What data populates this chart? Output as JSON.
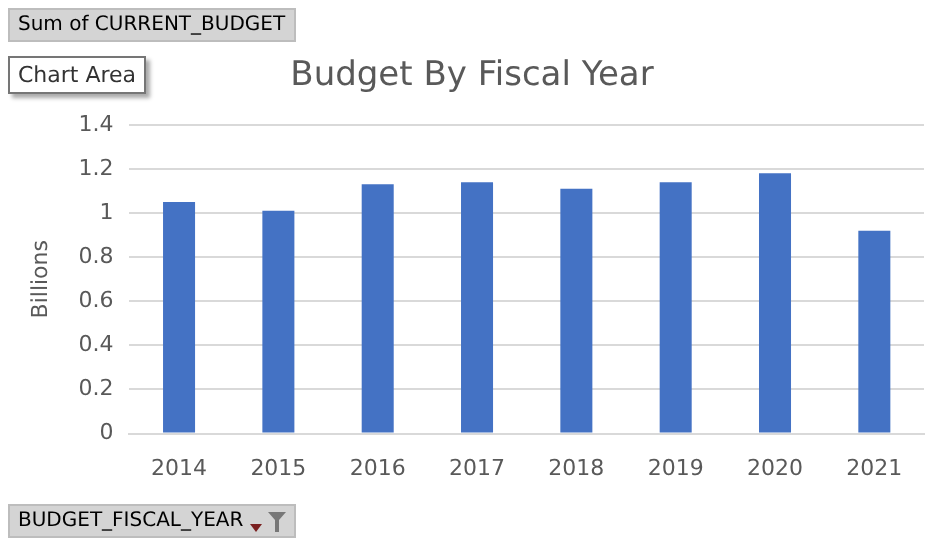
{
  "chart_data": {
    "type": "bar",
    "title": "Budget By Fiscal Year",
    "ylabel": "Billions",
    "categories": [
      "2014",
      "2015",
      "2016",
      "2017",
      "2018",
      "2019",
      "2020",
      "2021"
    ],
    "values": [
      1.05,
      1.01,
      1.13,
      1.14,
      1.11,
      1.14,
      1.18,
      0.92
    ],
    "color": "#4472c4",
    "ylim": [
      0,
      1.4
    ],
    "yticks": [
      0,
      0.2,
      0.4,
      0.6,
      0.8,
      1,
      1.2,
      1.4
    ],
    "grid": "y",
    "legend": false,
    "annotations": [
      "Sum of CURRENT_BUDGET",
      "Chart Area",
      "BUDGET_FISCAL_YEAR"
    ]
  }
}
